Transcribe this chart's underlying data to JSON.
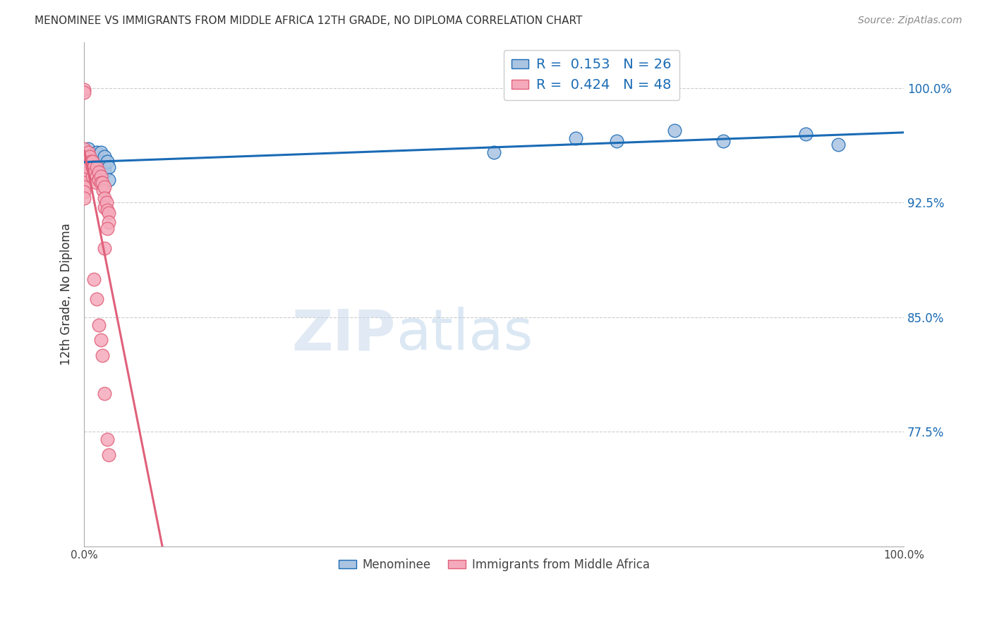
{
  "title": "MENOMINEE VS IMMIGRANTS FROM MIDDLE AFRICA 12TH GRADE, NO DIPLOMA CORRELATION CHART",
  "source": "Source: ZipAtlas.com",
  "ylabel": "12th Grade, No Diploma",
  "xlim": [
    0,
    1.0
  ],
  "ylim": [
    0.7,
    1.03
  ],
  "menominee_R": 0.153,
  "menominee_N": 26,
  "immigrants_R": 0.424,
  "immigrants_N": 48,
  "menominee_color": "#aac4e2",
  "immigrants_color": "#f5aabb",
  "menominee_line_color": "#1a6bb5",
  "immigrants_line_color": "#e0607a",
  "watermark_zip": "ZIP",
  "watermark_atlas": "atlas",
  "menominee_x": [
    0.0,
    0.005,
    0.007,
    0.008,
    0.01,
    0.012,
    0.013,
    0.015,
    0.017,
    0.018,
    0.02,
    0.022,
    0.024,
    0.025,
    0.025,
    0.025,
    0.028,
    0.03,
    0.03,
    0.5,
    0.6,
    0.65,
    0.72,
    0.78,
    0.88,
    0.92
  ],
  "menominee_y": [
    0.952,
    0.96,
    0.955,
    0.952,
    0.957,
    0.952,
    0.948,
    0.958,
    0.95,
    0.952,
    0.958,
    0.948,
    0.952,
    0.948,
    0.945,
    0.955,
    0.952,
    0.948,
    0.94,
    0.958,
    0.967,
    0.965,
    0.972,
    0.965,
    0.97,
    0.963
  ],
  "immigrants_x": [
    0.0,
    0.0,
    0.0,
    0.0,
    0.0,
    0.0,
    0.0,
    0.0,
    0.0,
    0.0,
    0.0,
    0.0,
    0.005,
    0.005,
    0.005,
    0.007,
    0.008,
    0.01,
    0.01,
    0.01,
    0.012,
    0.013,
    0.015,
    0.015,
    0.015,
    0.018,
    0.018,
    0.02,
    0.02,
    0.022,
    0.023,
    0.025,
    0.025,
    0.025,
    0.027,
    0.028,
    0.03,
    0.03,
    0.025,
    0.028,
    0.012,
    0.015,
    0.018,
    0.02,
    0.022,
    0.025,
    0.028,
    0.03
  ],
  "immigrants_y": [
    0.999,
    0.997,
    0.96,
    0.955,
    0.952,
    0.948,
    0.945,
    0.942,
    0.938,
    0.935,
    0.932,
    0.928,
    0.958,
    0.952,
    0.948,
    0.955,
    0.952,
    0.952,
    0.948,
    0.942,
    0.948,
    0.945,
    0.948,
    0.942,
    0.938,
    0.945,
    0.94,
    0.942,
    0.938,
    0.938,
    0.933,
    0.935,
    0.928,
    0.922,
    0.925,
    0.92,
    0.918,
    0.912,
    0.895,
    0.908,
    0.875,
    0.862,
    0.845,
    0.835,
    0.825,
    0.8,
    0.77,
    0.76
  ]
}
